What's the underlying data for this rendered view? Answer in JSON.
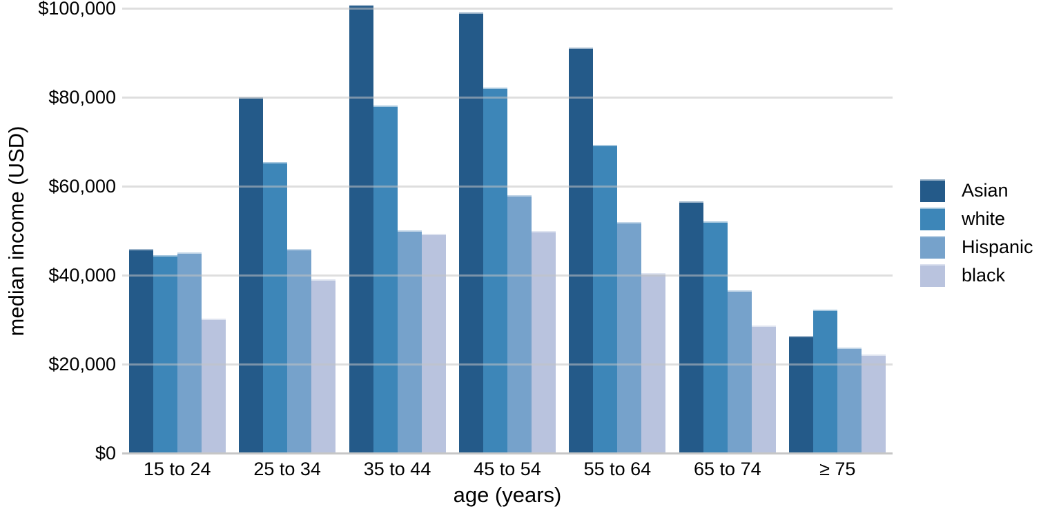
{
  "chart_data": {
    "type": "bar",
    "title": "",
    "xlabel": "age (years)",
    "ylabel": "median income (USD)",
    "categories": [
      "15 to 24",
      "25 to 34",
      "35 to 44",
      "45 to 54",
      "55 to 64",
      "65 to 74",
      "≥ 75"
    ],
    "series": [
      {
        "name": "Asian",
        "color": "#245a89",
        "values": [
          45900,
          80000,
          100800,
          99000,
          91200,
          56600,
          26400
        ]
      },
      {
        "name": "white",
        "color": "#3d86b8",
        "values": [
          44500,
          65400,
          78100,
          82100,
          69300,
          52100,
          32200
        ]
      },
      {
        "name": "Hispanic",
        "color": "#76a2cb",
        "values": [
          45100,
          45900,
          50100,
          58000,
          51900,
          36600,
          23700
        ]
      },
      {
        "name": "black",
        "color": "#b9c3de",
        "values": [
          30200,
          39100,
          49300,
          49900,
          40400,
          28700,
          22200
        ]
      }
    ],
    "y_ticks": [
      {
        "value": 0,
        "label": "$0"
      },
      {
        "value": 20000,
        "label": "$20,000"
      },
      {
        "value": 40000,
        "label": "$40,000"
      },
      {
        "value": 60000,
        "label": "$60,000"
      },
      {
        "value": 80000,
        "label": "$80,000"
      },
      {
        "value": 100000,
        "label": "$100,000"
      }
    ],
    "ylim": [
      0,
      100000
    ],
    "grid": true,
    "gridline_color": "#c6c6c6",
    "legend_position": "right",
    "legend_entries": [
      "Asian",
      "white",
      "Hispanic",
      "black"
    ]
  }
}
